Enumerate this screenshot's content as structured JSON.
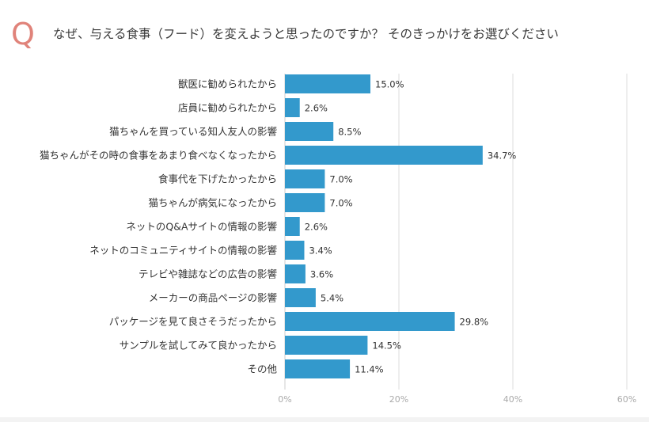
{
  "header": {
    "q_mark": "Q",
    "question": "なぜ、与える食事（フード）を変えようと思ったのですか？ そのきっかけをお選びください"
  },
  "chart_data": {
    "type": "bar",
    "orientation": "horizontal",
    "categories": [
      "獣医に勧められたから",
      "店員に勧められたから",
      "猫ちゃんを買っている知人友人の影響",
      "猫ちゃんがその時の食事をあまり食べなくなったから",
      "食事代を下げたかったから",
      "猫ちゃんが病気になったから",
      "ネットのQ&Aサイトの情報の影響",
      "ネットのコミュニティサイトの情報の影響",
      "テレビや雑誌などの広告の影響",
      "メーカーの商品ページの影響",
      "パッケージを見て良さそうだったから",
      "サンプルを試してみて良かったから",
      "その他"
    ],
    "values": [
      15.0,
      2.6,
      8.5,
      34.7,
      7.0,
      7.0,
      2.6,
      3.4,
      3.6,
      5.4,
      29.8,
      14.5,
      11.4
    ],
    "value_labels": [
      "15.0%",
      "2.6%",
      "8.5%",
      "34.7%",
      "7.0%",
      "7.0%",
      "2.6%",
      "3.4%",
      "3.6%",
      "5.4%",
      "29.8%",
      "14.5%",
      "11.4%"
    ],
    "xlim": [
      0,
      60
    ],
    "xticks": [
      0,
      20,
      40,
      60
    ],
    "xtick_labels": [
      "0%",
      "20%",
      "40%",
      "60%"
    ],
    "grid": true,
    "bar_color": "#3399cc",
    "grid_color": "#dddddd",
    "tick_label_color": "#aaaaaa"
  }
}
